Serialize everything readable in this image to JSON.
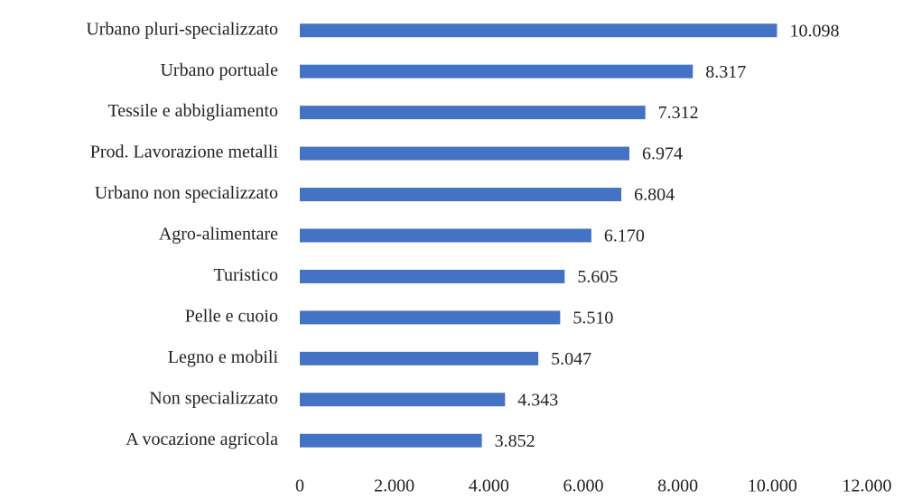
{
  "chart_data": {
    "type": "barh",
    "categories": [
      "Urbano pluri-specializzato",
      "Urbano portuale",
      "Tessile e abbigliamento",
      "Prod. Lavorazione metalli",
      "Urbano non specializzato",
      "Agro-alimentare",
      "Turistico",
      "Pelle e cuoio",
      "Legno e mobili",
      "Non specializzato",
      "A vocazione agricola"
    ],
    "values": [
      10098,
      8317,
      7312,
      6974,
      6804,
      6170,
      5605,
      5510,
      5047,
      4343,
      3852
    ],
    "value_labels": [
      "10.098",
      "8.317",
      "7.312",
      "6.974",
      "6.804",
      "6.170",
      "5.605",
      "5.510",
      "5.047",
      "4.343",
      "3.852"
    ],
    "color": "#4472c4",
    "xlim": [
      0,
      12000
    ],
    "xticks": [
      0,
      {
        "value": 2000,
        "label": "2.000"
      },
      {
        "value": 4000,
        "label": "4.000"
      },
      {
        "value": 6000,
        "label": "6.000"
      },
      {
        "value": 8000,
        "label": "8.000"
      },
      {
        "value": 10000,
        "label": "10.000"
      },
      {
        "value": 12000,
        "label": "12.000"
      }
    ],
    "grid": false
  }
}
